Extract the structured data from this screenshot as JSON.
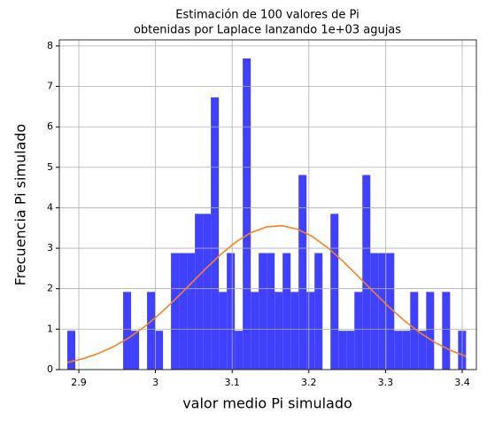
{
  "chart_data": {
    "type": "histogram",
    "title": [
      "Estimación de 100 valores de Pi",
      "obtenidas por Laplace lanzando 1e+03 agujas"
    ],
    "xlabel": "valor medio Pi simulado",
    "ylabel": "Frecuencia Pi simulado",
    "color": "#4040ff",
    "bins": [
      2.885,
      2.8954,
      2.9058,
      2.9162,
      2.9266,
      2.937,
      2.9474,
      2.9578,
      2.9682,
      2.9786,
      2.989,
      2.9994,
      3.0098,
      3.0202,
      3.0306,
      3.041,
      3.0514,
      3.0618,
      3.0722,
      3.0826,
      3.093,
      3.1034,
      3.1138,
      3.1242,
      3.1346,
      3.145,
      3.1554,
      3.1658,
      3.1762,
      3.1866,
      3.197,
      3.2074,
      3.2178,
      3.2282,
      3.2386,
      3.249,
      3.2594,
      3.2698,
      3.2802,
      3.2906,
      3.301,
      3.3114,
      3.3218,
      3.3322,
      3.3426,
      3.353,
      3.3634,
      3.3738,
      3.3842,
      3.3946,
      3.405
    ],
    "values": [
      0.96,
      0,
      0,
      0,
      0,
      0,
      0,
      1.92,
      0.96,
      0,
      1.92,
      0.96,
      0,
      2.88,
      2.88,
      2.88,
      3.85,
      3.85,
      6.73,
      1.92,
      2.88,
      0.96,
      7.69,
      1.92,
      2.88,
      2.88,
      1.92,
      2.88,
      1.92,
      4.81,
      1.92,
      2.88,
      0,
      3.85,
      0.96,
      0.96,
      1.92,
      4.81,
      2.88,
      2.88,
      2.88,
      0.96,
      0.96,
      1.92,
      0.96,
      1.92,
      0,
      1.92,
      0,
      0.96
    ],
    "fit": {
      "type": "line",
      "color": "#f5841f",
      "x": [
        2.885,
        2.905,
        2.925,
        2.945,
        2.965,
        2.985,
        3.005,
        3.025,
        3.045,
        3.065,
        3.085,
        3.105,
        3.125,
        3.145,
        3.165,
        3.185,
        3.205,
        3.225,
        3.245,
        3.265,
        3.285,
        3.305,
        3.325,
        3.345,
        3.365,
        3.385,
        3.405
      ],
      "values": [
        0.175,
        0.267,
        0.394,
        0.564,
        0.782,
        1.05,
        1.366,
        1.722,
        2.101,
        2.485,
        2.845,
        3.156,
        3.391,
        3.528,
        3.556,
        3.472,
        3.284,
        3.008,
        2.669,
        2.294,
        1.91,
        1.54,
        1.203,
        0.91,
        0.667,
        0.473,
        0.325
      ]
    },
    "xlim": [
      2.8746,
      3.4185
    ],
    "ylim": [
      0,
      8.15
    ],
    "xticks": [
      2.9,
      3.0,
      3.1,
      3.2,
      3.3,
      3.4
    ],
    "yticks": [
      0,
      1,
      2,
      3,
      4,
      5,
      6,
      7,
      8
    ],
    "grid": true
  }
}
